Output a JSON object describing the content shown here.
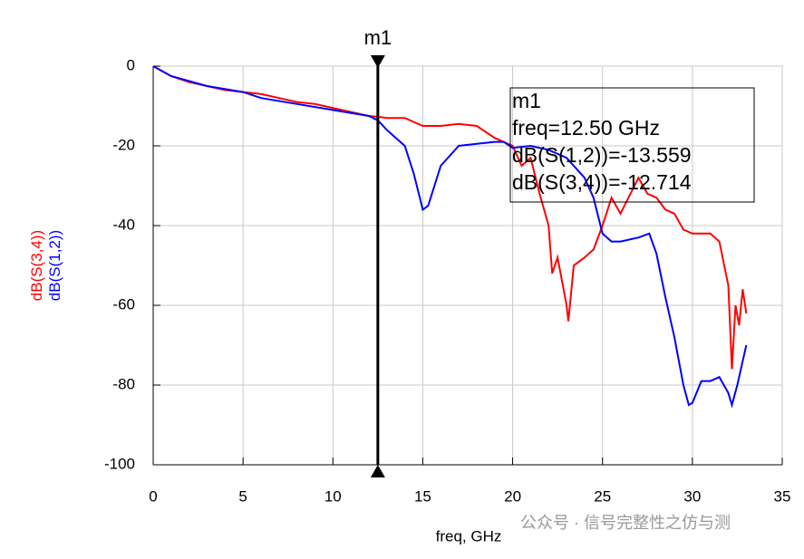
{
  "chart_data": {
    "type": "line",
    "x_label": "freq, GHz",
    "xlim": [
      0,
      35
    ],
    "xticks": [
      0,
      5,
      10,
      15,
      20,
      25,
      30,
      35
    ],
    "ylim": [
      -100,
      0
    ],
    "yticks": [
      0,
      -20,
      -40,
      -60,
      -80,
      -100
    ],
    "grid": true,
    "series": [
      {
        "name": "dB(S(3,4))",
        "color": "#ff0000",
        "x": [
          0,
          1,
          2,
          3,
          4,
          5,
          6,
          7,
          8,
          9,
          10,
          11,
          12,
          12.5,
          13,
          14,
          15,
          16,
          17,
          18,
          19,
          20,
          20.5,
          21,
          21.5,
          22,
          22.2,
          22.5,
          23,
          23.1,
          23.4,
          24,
          24.5,
          25,
          25.5,
          26,
          27,
          27.5,
          28,
          28.5,
          29,
          29.5,
          30,
          31,
          31.5,
          32,
          32.2,
          32.4,
          32.6,
          32.8,
          33
        ],
        "values": [
          0,
          -2.5,
          -4,
          -5,
          -6,
          -6.5,
          -7,
          -8,
          -9,
          -9.5,
          -10.5,
          -11.5,
          -12.5,
          -12.7,
          -13,
          -13,
          -15,
          -15,
          -14.5,
          -15,
          -18,
          -20,
          -25,
          -23,
          -32,
          -40,
          -52,
          -48,
          -60,
          -64,
          -50,
          -48,
          -46,
          -40,
          -33,
          -37,
          -28,
          -32,
          -33,
          -36,
          -37,
          -41,
          -42,
          -42,
          -44,
          -55,
          -76,
          -60,
          -65,
          -56,
          -62
        ]
      },
      {
        "name": "dB(S(1,2))",
        "color": "#0000ff",
        "x": [
          0,
          1,
          3,
          5,
          6,
          8,
          10,
          12,
          12.5,
          13,
          13.5,
          14,
          14.5,
          15,
          15.3,
          16,
          17,
          18,
          19,
          19.5,
          20,
          21,
          22,
          23,
          24,
          24.5,
          25,
          25.5,
          26,
          27,
          27.6,
          28,
          28.5,
          29,
          29.5,
          29.8,
          30,
          30.5,
          31,
          31.5,
          32,
          32.2,
          32.5,
          33
        ],
        "values": [
          0,
          -2.5,
          -5,
          -6.5,
          -8,
          -9.5,
          -11,
          -12.5,
          -13.6,
          -16,
          -18,
          -20,
          -27,
          -36,
          -35,
          -25,
          -20,
          -19.5,
          -19,
          -19,
          -20.5,
          -20,
          -21,
          -23,
          -28,
          -33,
          -42,
          -44,
          -44,
          -43,
          -42,
          -47,
          -58,
          -68,
          -80,
          -85,
          -84.5,
          -79,
          -79,
          -78,
          -82,
          -85,
          -80,
          -70
        ]
      }
    ],
    "marker": {
      "name": "m1",
      "x": 12.5,
      "readout": [
        "m1",
        "freq=12.50 GHz",
        "dB(S(1,2))=-13.559",
        "dB(S(3,4))=-12.714"
      ]
    },
    "watermark": "公众号 · 信号完整性之仿与测"
  }
}
